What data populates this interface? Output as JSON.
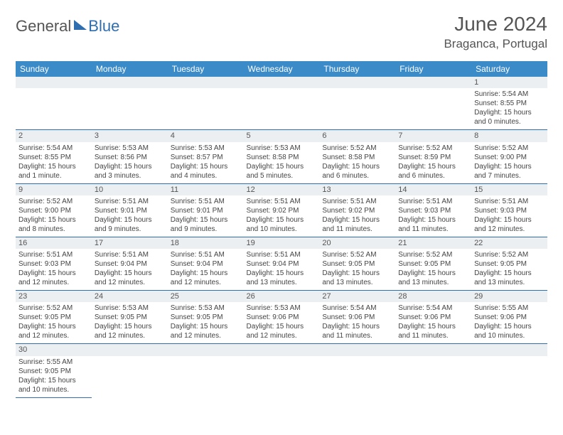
{
  "logo": {
    "part1": "General",
    "part2": "Blue"
  },
  "title": "June 2024",
  "location": "Braganca, Portugal",
  "colors": {
    "header_bg": "#3b8bc9",
    "header_text": "#ffffff",
    "border": "#2f6fb0",
    "daynum_bg": "#eceff1",
    "text": "#444444",
    "logo_accent": "#2f6fb0"
  },
  "weekdays": [
    "Sunday",
    "Monday",
    "Tuesday",
    "Wednesday",
    "Thursday",
    "Friday",
    "Saturday"
  ],
  "weeks": [
    [
      {
        "n": "",
        "sr": "",
        "ss": "",
        "dl": ""
      },
      {
        "n": "",
        "sr": "",
        "ss": "",
        "dl": ""
      },
      {
        "n": "",
        "sr": "",
        "ss": "",
        "dl": ""
      },
      {
        "n": "",
        "sr": "",
        "ss": "",
        "dl": ""
      },
      {
        "n": "",
        "sr": "",
        "ss": "",
        "dl": ""
      },
      {
        "n": "",
        "sr": "",
        "ss": "",
        "dl": ""
      },
      {
        "n": "1",
        "sr": "Sunrise: 5:54 AM",
        "ss": "Sunset: 8:55 PM",
        "dl": "Daylight: 15 hours and 0 minutes."
      }
    ],
    [
      {
        "n": "2",
        "sr": "Sunrise: 5:54 AM",
        "ss": "Sunset: 8:55 PM",
        "dl": "Daylight: 15 hours and 1 minute."
      },
      {
        "n": "3",
        "sr": "Sunrise: 5:53 AM",
        "ss": "Sunset: 8:56 PM",
        "dl": "Daylight: 15 hours and 3 minutes."
      },
      {
        "n": "4",
        "sr": "Sunrise: 5:53 AM",
        "ss": "Sunset: 8:57 PM",
        "dl": "Daylight: 15 hours and 4 minutes."
      },
      {
        "n": "5",
        "sr": "Sunrise: 5:53 AM",
        "ss": "Sunset: 8:58 PM",
        "dl": "Daylight: 15 hours and 5 minutes."
      },
      {
        "n": "6",
        "sr": "Sunrise: 5:52 AM",
        "ss": "Sunset: 8:58 PM",
        "dl": "Daylight: 15 hours and 6 minutes."
      },
      {
        "n": "7",
        "sr": "Sunrise: 5:52 AM",
        "ss": "Sunset: 8:59 PM",
        "dl": "Daylight: 15 hours and 6 minutes."
      },
      {
        "n": "8",
        "sr": "Sunrise: 5:52 AM",
        "ss": "Sunset: 9:00 PM",
        "dl": "Daylight: 15 hours and 7 minutes."
      }
    ],
    [
      {
        "n": "9",
        "sr": "Sunrise: 5:52 AM",
        "ss": "Sunset: 9:00 PM",
        "dl": "Daylight: 15 hours and 8 minutes."
      },
      {
        "n": "10",
        "sr": "Sunrise: 5:51 AM",
        "ss": "Sunset: 9:01 PM",
        "dl": "Daylight: 15 hours and 9 minutes."
      },
      {
        "n": "11",
        "sr": "Sunrise: 5:51 AM",
        "ss": "Sunset: 9:01 PM",
        "dl": "Daylight: 15 hours and 9 minutes."
      },
      {
        "n": "12",
        "sr": "Sunrise: 5:51 AM",
        "ss": "Sunset: 9:02 PM",
        "dl": "Daylight: 15 hours and 10 minutes."
      },
      {
        "n": "13",
        "sr": "Sunrise: 5:51 AM",
        "ss": "Sunset: 9:02 PM",
        "dl": "Daylight: 15 hours and 11 minutes."
      },
      {
        "n": "14",
        "sr": "Sunrise: 5:51 AM",
        "ss": "Sunset: 9:03 PM",
        "dl": "Daylight: 15 hours and 11 minutes."
      },
      {
        "n": "15",
        "sr": "Sunrise: 5:51 AM",
        "ss": "Sunset: 9:03 PM",
        "dl": "Daylight: 15 hours and 12 minutes."
      }
    ],
    [
      {
        "n": "16",
        "sr": "Sunrise: 5:51 AM",
        "ss": "Sunset: 9:03 PM",
        "dl": "Daylight: 15 hours and 12 minutes."
      },
      {
        "n": "17",
        "sr": "Sunrise: 5:51 AM",
        "ss": "Sunset: 9:04 PM",
        "dl": "Daylight: 15 hours and 12 minutes."
      },
      {
        "n": "18",
        "sr": "Sunrise: 5:51 AM",
        "ss": "Sunset: 9:04 PM",
        "dl": "Daylight: 15 hours and 12 minutes."
      },
      {
        "n": "19",
        "sr": "Sunrise: 5:51 AM",
        "ss": "Sunset: 9:04 PM",
        "dl": "Daylight: 15 hours and 13 minutes."
      },
      {
        "n": "20",
        "sr": "Sunrise: 5:52 AM",
        "ss": "Sunset: 9:05 PM",
        "dl": "Daylight: 15 hours and 13 minutes."
      },
      {
        "n": "21",
        "sr": "Sunrise: 5:52 AM",
        "ss": "Sunset: 9:05 PM",
        "dl": "Daylight: 15 hours and 13 minutes."
      },
      {
        "n": "22",
        "sr": "Sunrise: 5:52 AM",
        "ss": "Sunset: 9:05 PM",
        "dl": "Daylight: 15 hours and 13 minutes."
      }
    ],
    [
      {
        "n": "23",
        "sr": "Sunrise: 5:52 AM",
        "ss": "Sunset: 9:05 PM",
        "dl": "Daylight: 15 hours and 12 minutes."
      },
      {
        "n": "24",
        "sr": "Sunrise: 5:53 AM",
        "ss": "Sunset: 9:05 PM",
        "dl": "Daylight: 15 hours and 12 minutes."
      },
      {
        "n": "25",
        "sr": "Sunrise: 5:53 AM",
        "ss": "Sunset: 9:05 PM",
        "dl": "Daylight: 15 hours and 12 minutes."
      },
      {
        "n": "26",
        "sr": "Sunrise: 5:53 AM",
        "ss": "Sunset: 9:06 PM",
        "dl": "Daylight: 15 hours and 12 minutes."
      },
      {
        "n": "27",
        "sr": "Sunrise: 5:54 AM",
        "ss": "Sunset: 9:06 PM",
        "dl": "Daylight: 15 hours and 11 minutes."
      },
      {
        "n": "28",
        "sr": "Sunrise: 5:54 AM",
        "ss": "Sunset: 9:06 PM",
        "dl": "Daylight: 15 hours and 11 minutes."
      },
      {
        "n": "29",
        "sr": "Sunrise: 5:55 AM",
        "ss": "Sunset: 9:06 PM",
        "dl": "Daylight: 15 hours and 10 minutes."
      }
    ],
    [
      {
        "n": "30",
        "sr": "Sunrise: 5:55 AM",
        "ss": "Sunset: 9:05 PM",
        "dl": "Daylight: 15 hours and 10 minutes."
      },
      {
        "n": "",
        "sr": "",
        "ss": "",
        "dl": ""
      },
      {
        "n": "",
        "sr": "",
        "ss": "",
        "dl": ""
      },
      {
        "n": "",
        "sr": "",
        "ss": "",
        "dl": ""
      },
      {
        "n": "",
        "sr": "",
        "ss": "",
        "dl": ""
      },
      {
        "n": "",
        "sr": "",
        "ss": "",
        "dl": ""
      },
      {
        "n": "",
        "sr": "",
        "ss": "",
        "dl": ""
      }
    ]
  ]
}
